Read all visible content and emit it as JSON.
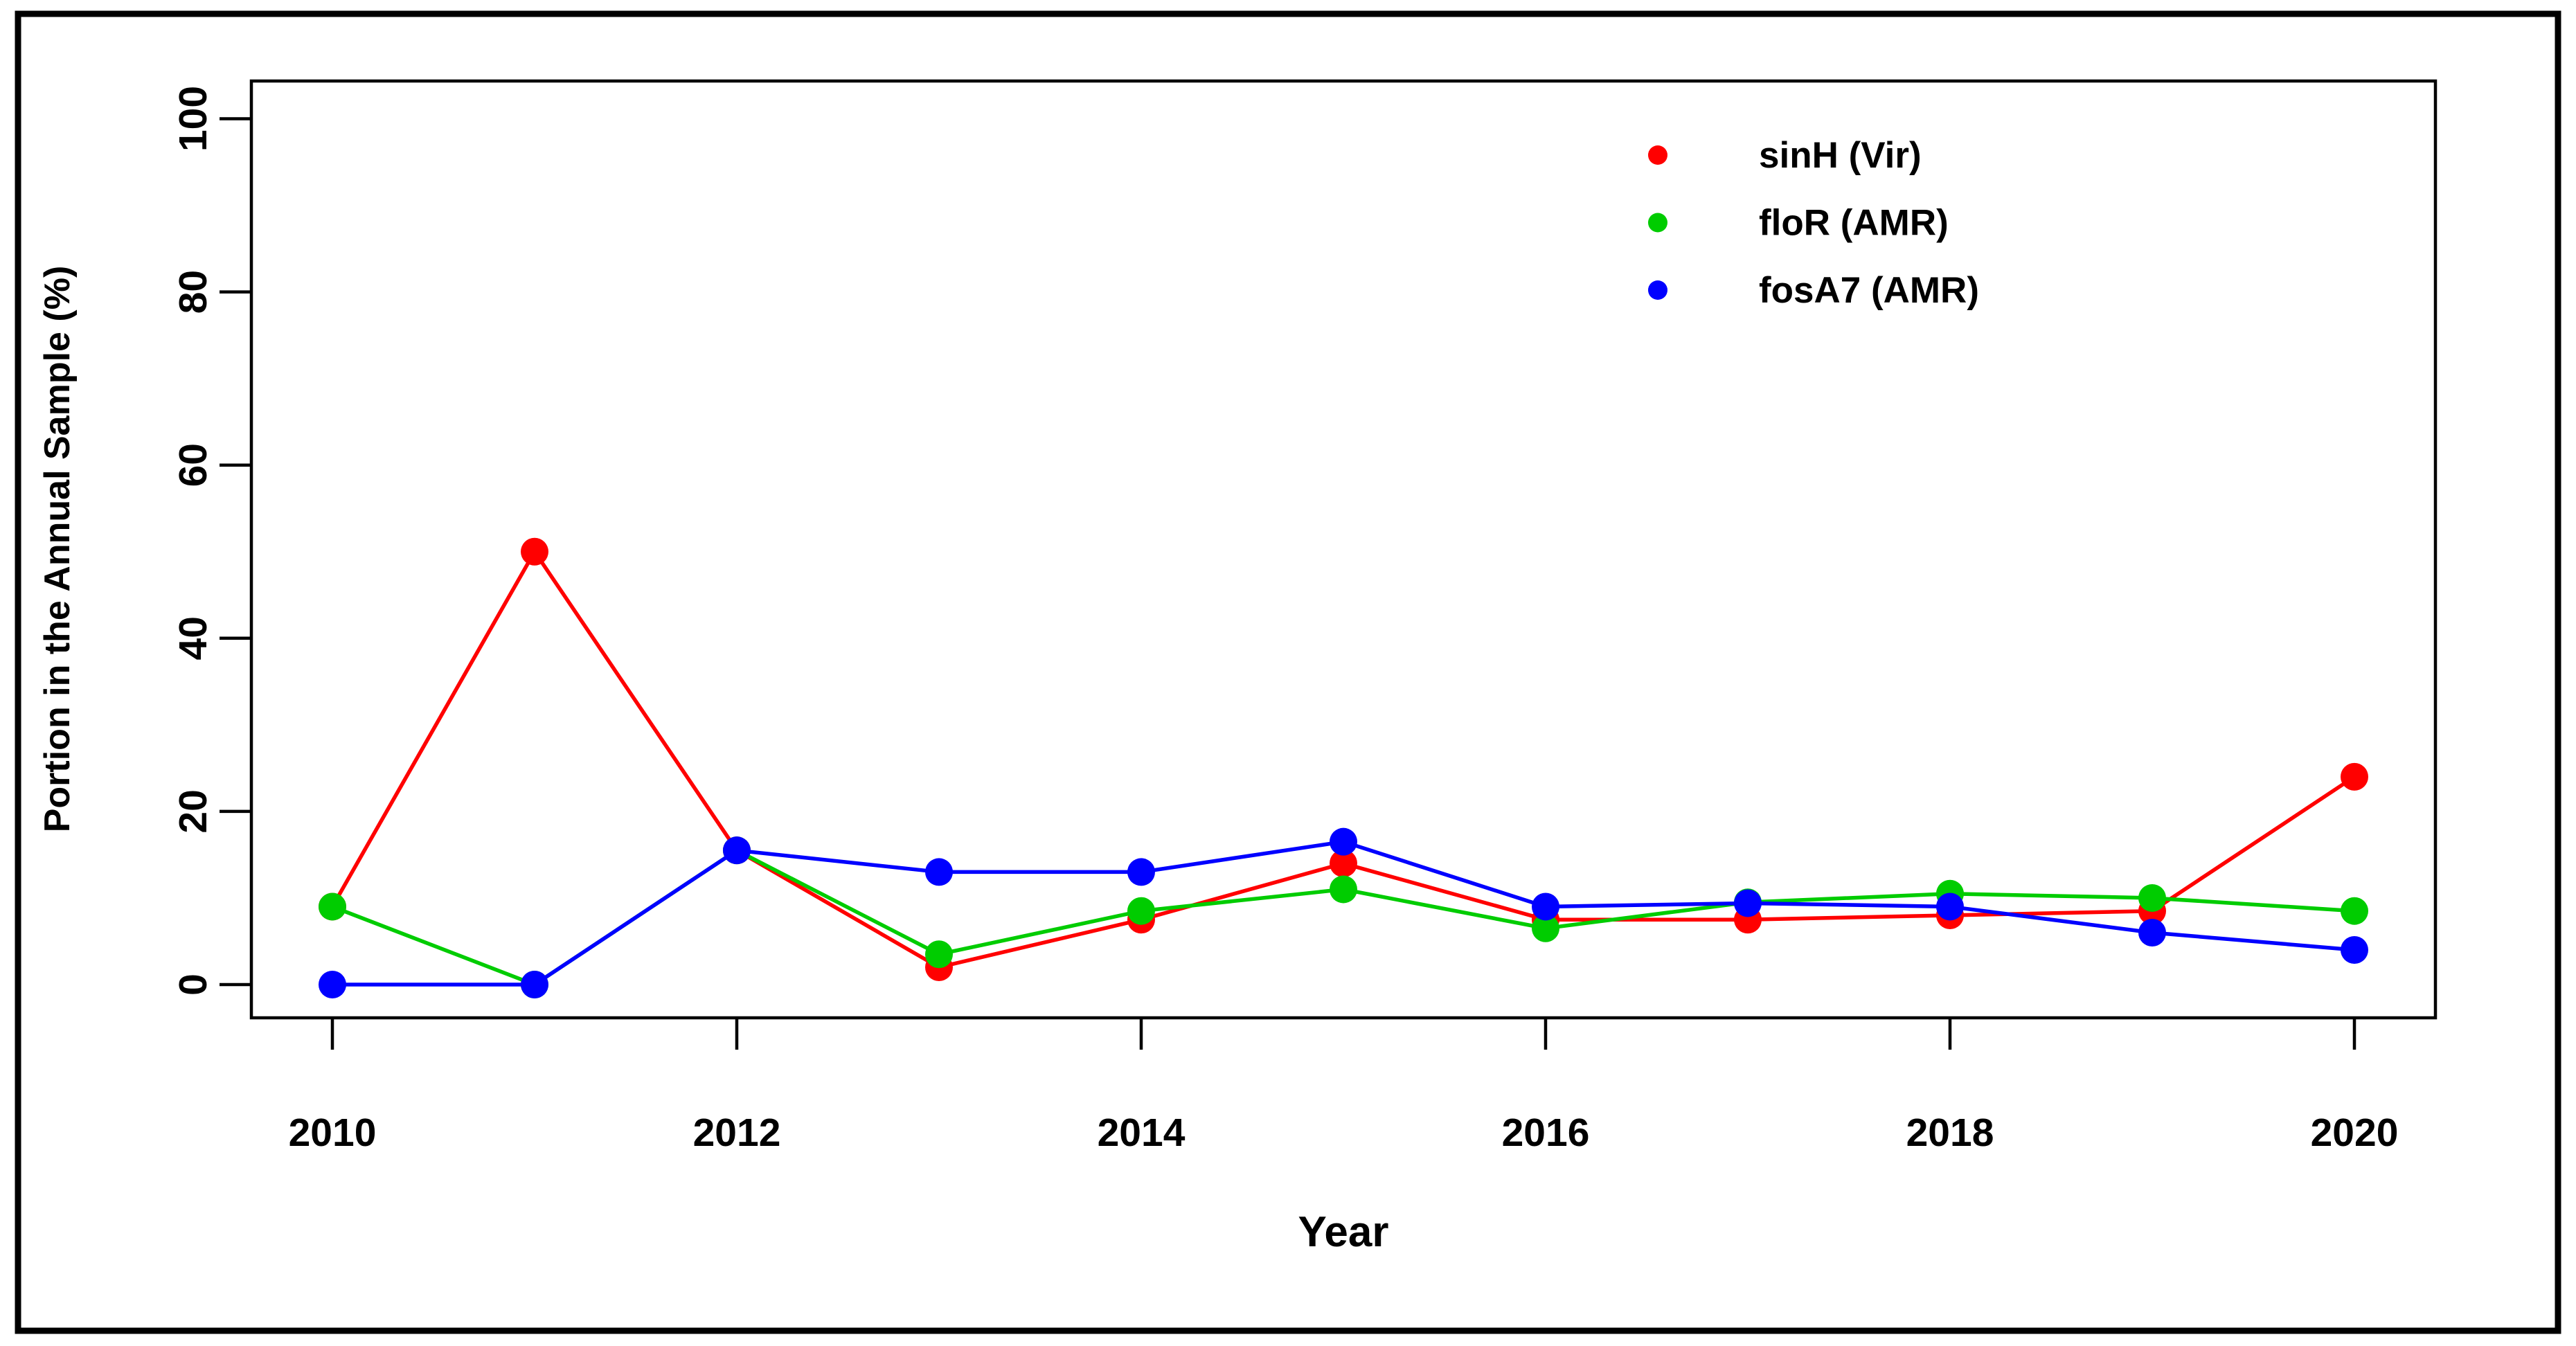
{
  "figure": {
    "background": "#ffffff",
    "outer_border_color": "#000000",
    "plot_box_color": "#000000"
  },
  "chart_data": {
    "type": "line",
    "title": "",
    "xlabel": "Year",
    "ylabel": "Portion in the Annual Sample (%)",
    "x": [
      2010,
      2011,
      2012,
      2013,
      2014,
      2015,
      2016,
      2017,
      2018,
      2019,
      2020
    ],
    "x_ticks": [
      2010,
      2012,
      2014,
      2016,
      2018,
      2020
    ],
    "x_tick_labels": [
      "2010",
      "2012",
      "2014",
      "2016",
      "2018",
      "2020"
    ],
    "y_ticks": [
      0,
      20,
      40,
      60,
      80,
      100
    ],
    "y_tick_labels": [
      "0",
      "20",
      "40",
      "60",
      "80",
      "100"
    ],
    "ylim": [
      0,
      100
    ],
    "grid": false,
    "marker": "filled-circle",
    "legend_position": "top-right-inside",
    "series": [
      {
        "name": "sinH (Vir)",
        "color": "#ff0000",
        "values": [
          9,
          50,
          15.5,
          2,
          7.5,
          14,
          7.5,
          7.5,
          8,
          8.5,
          24
        ]
      },
      {
        "name": "floR (AMR)",
        "color": "#00cc00",
        "values": [
          9,
          0,
          15.5,
          3.5,
          8.5,
          11,
          6.5,
          9.5,
          10.5,
          10,
          8.5
        ]
      },
      {
        "name": "fosA7 (AMR)",
        "color": "#0000ff",
        "values": [
          0,
          0,
          15.5,
          13,
          13,
          16.5,
          9,
          9.4,
          9,
          6,
          4
        ]
      }
    ]
  }
}
